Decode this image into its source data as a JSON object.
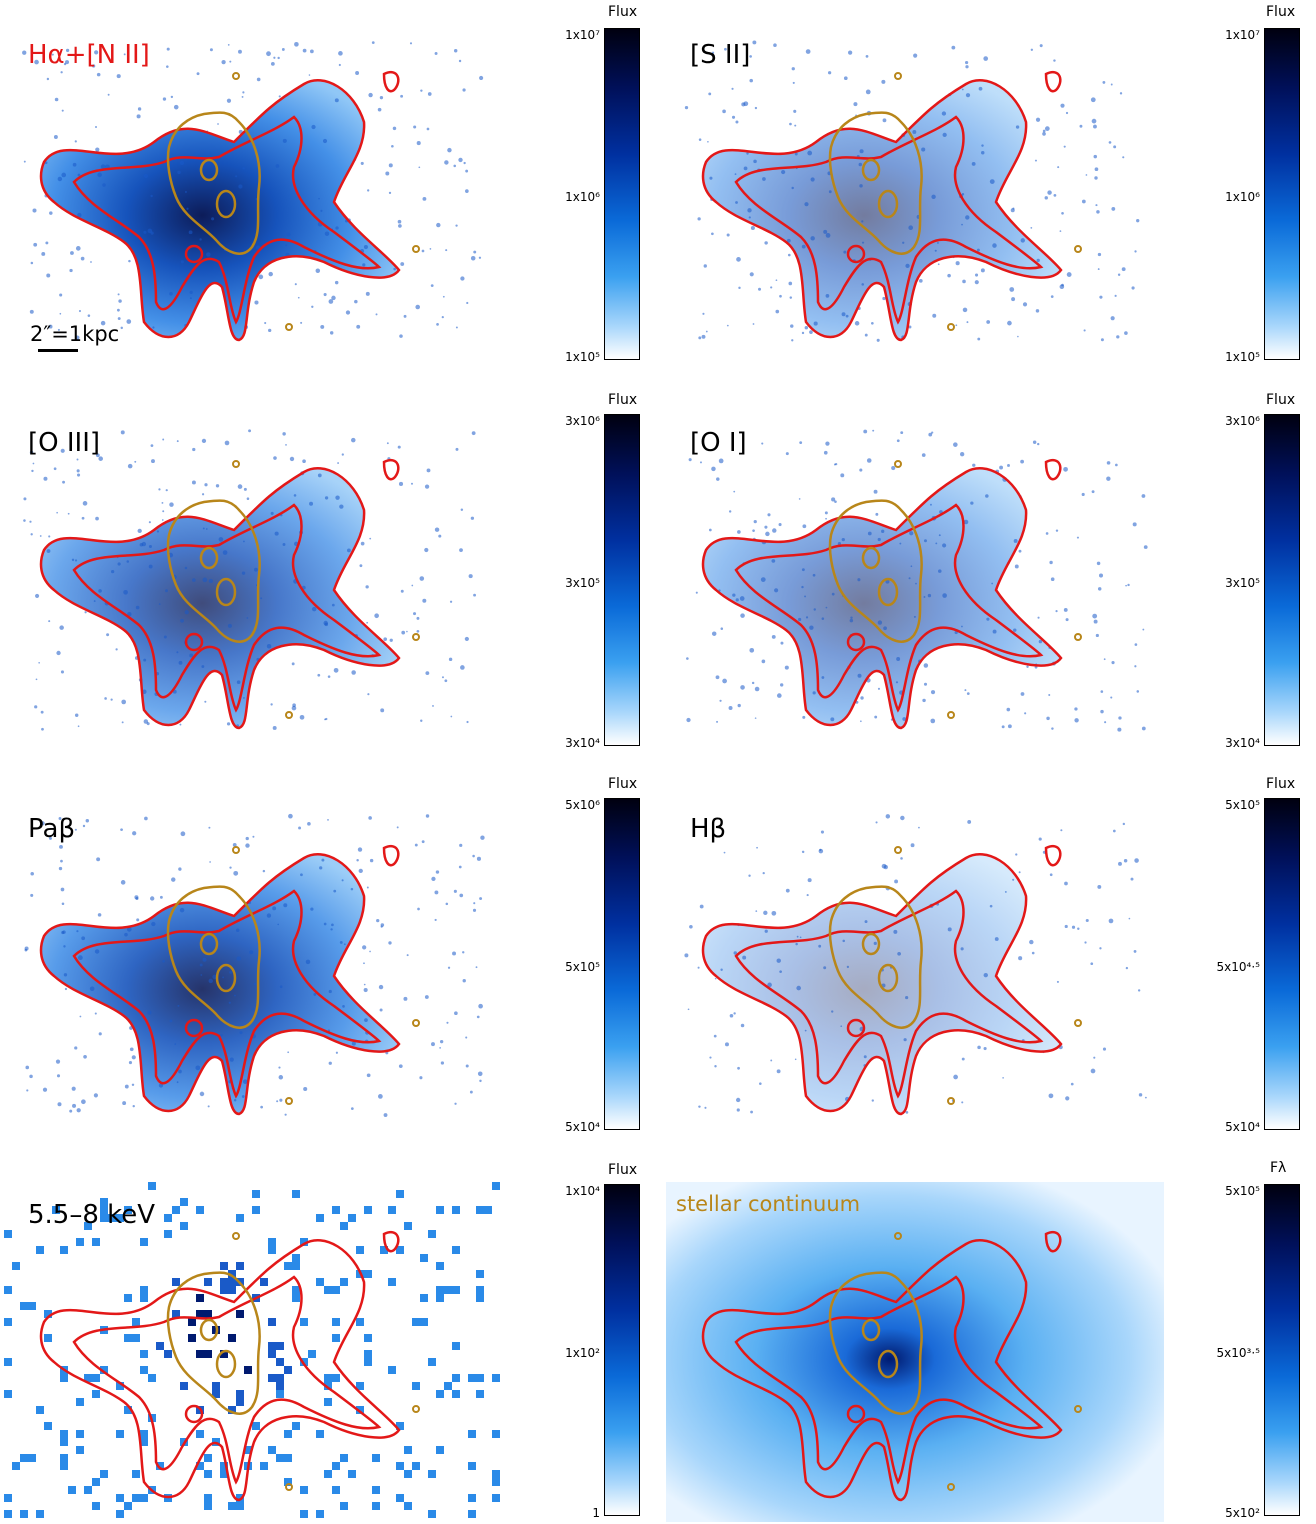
{
  "panels": [
    {
      "label": "Hα+[N II]",
      "label_color": "#e31818",
      "style": "dense"
    },
    {
      "label": "[S II]",
      "label_color": "#000000",
      "style": "patchy"
    },
    {
      "label": "[O III]",
      "label_color": "#000000",
      "style": "oiii"
    },
    {
      "label": "[O I]",
      "label_color": "#000000",
      "style": "patchy"
    },
    {
      "label": "Paβ",
      "label_color": "#000000",
      "style": "smooth"
    },
    {
      "label": "Hβ",
      "label_color": "#000000",
      "style": "sparse"
    },
    {
      "label": "5.5–8 keV",
      "label_color": "#000000",
      "style": "pixel"
    },
    {
      "label": "stellar continuum",
      "label_color": "#b8861a",
      "style": "continuum"
    }
  ],
  "scalebar": {
    "text": "2″=1kpc"
  },
  "colorbars": [
    {
      "title": "Flux",
      "ticks": [
        "1x10⁷",
        "1x10⁶",
        "1x10⁵"
      ]
    },
    {
      "title": "Flux",
      "ticks": [
        "1x10⁷",
        "1x10⁶",
        "1x10⁵"
      ]
    },
    {
      "title": "Flux",
      "ticks": [
        "3x10⁶",
        "3x10⁵",
        "3x10⁴"
      ]
    },
    {
      "title": "Flux",
      "ticks": [
        "3x10⁶",
        "3x10⁵",
        "3x10⁴"
      ]
    },
    {
      "title": "Flux",
      "ticks": [
        "5x10⁶",
        "5x10⁵",
        "5x10⁴"
      ]
    },
    {
      "title": "Flux",
      "ticks": [
        "5x10⁵",
        "5x10⁴·⁵",
        "5x10⁴"
      ]
    },
    {
      "title": "Flux",
      "ticks": [
        "1x10⁴",
        "1x10²",
        "1"
      ]
    },
    {
      "title": "Fλ",
      "ticks": [
        "5x10⁵",
        "5x10³·⁵",
        "5x10²"
      ]
    }
  ],
  "colors": {
    "outer_contour": "#e31818",
    "inner_contour": "#b8861a",
    "map_dark": "#001050",
    "map_light": "#4aa8f5"
  }
}
